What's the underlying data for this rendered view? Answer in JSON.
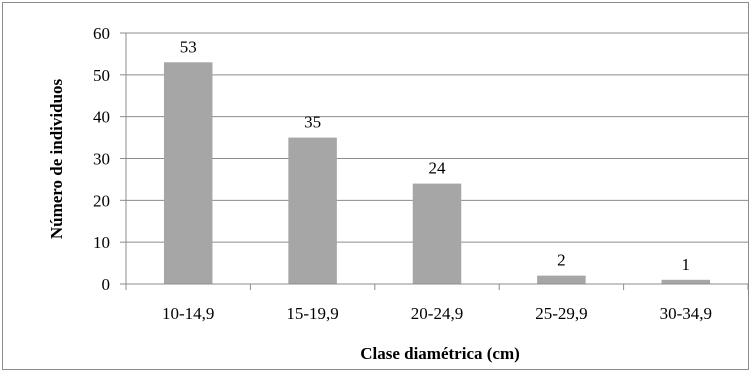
{
  "chart_data": {
    "type": "bar",
    "title": "",
    "xlabel": "Clase diamétrica (cm)",
    "ylabel": "Número de individuos",
    "categories": [
      "10-14,9",
      "15-19,9",
      "20-24,9",
      "25-29,9",
      "30-34,9"
    ],
    "values": [
      53,
      35,
      24,
      2,
      1
    ],
    "data_labels": [
      "53",
      "35",
      "24",
      "2",
      "1"
    ],
    "y_ticks": [
      "0",
      "10",
      "20",
      "30",
      "40",
      "50",
      "60"
    ],
    "ylim": [
      0,
      60
    ],
    "y_tick_step": 10,
    "grid": "horizontal",
    "legend": "none",
    "colors": {
      "bar": "#a6a6a6",
      "grid": "#8c8c8c",
      "axis": "#8c8c8c"
    }
  }
}
